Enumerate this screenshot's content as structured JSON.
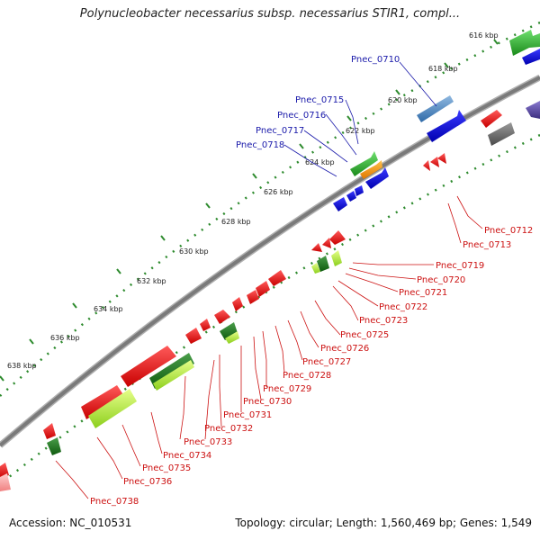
{
  "header": {
    "title": "Polynucleobacter necessarius subsp. necessarius STIR1, compl..."
  },
  "footer": {
    "accession": "Accession: NC_010531",
    "summary": "Topology: circular; Length: 1,560,469 bp; Genes: 1,549"
  },
  "scale_labels": [
    "616 kbp",
    "618 kbp",
    "620 kbp",
    "622 kbp",
    "624 kbp",
    "626 kbp",
    "628 kbp",
    "630 kbp",
    "632 kbp",
    "634 kbp",
    "636 kbp",
    "638 kbp"
  ],
  "forward_genes": [
    "Pnec_0710",
    "Pnec_0715",
    "Pnec_0716",
    "Pnec_0717",
    "Pnec_0718"
  ],
  "reverse_genes": [
    "Pnec_0712",
    "Pnec_0713",
    "Pnec_0719",
    "Pnec_0720",
    "Pnec_0721",
    "Pnec_0722",
    "Pnec_0723",
    "Pnec_0725",
    "Pnec_0726",
    "Pnec_0727",
    "Pnec_0728",
    "Pnec_0729",
    "Pnec_0730",
    "Pnec_0731",
    "Pnec_0732",
    "Pnec_0733",
    "Pnec_0734",
    "Pnec_0735",
    "Pnec_0736",
    "Pnec_0738"
  ],
  "colors": {
    "backbone": "#808080",
    "forward_label": "#1a1aaa",
    "reverse_label": "#cc1111",
    "tick": "#2e8b2e"
  }
}
